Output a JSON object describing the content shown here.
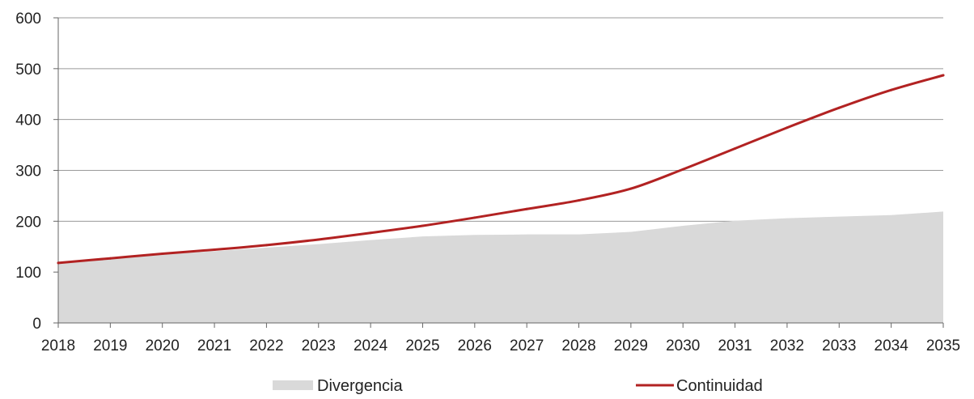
{
  "chart_data": {
    "type": "area",
    "title": "",
    "xlabel": "",
    "ylabel": "",
    "x": [
      "2018",
      "2019",
      "2020",
      "2021",
      "2022",
      "2023",
      "2024",
      "2025",
      "2026",
      "2027",
      "2028",
      "2029",
      "2030",
      "2031",
      "2032",
      "2033",
      "2034",
      "2035"
    ],
    "ylim": [
      0,
      600
    ],
    "yticks": [
      0,
      100,
      200,
      300,
      400,
      500,
      600
    ],
    "grid": "horizontal",
    "legend_position": "bottom",
    "series": [
      {
        "name": "Divergencia",
        "style": "area",
        "color": "#d9d9d9",
        "values": [
          118,
          128,
          135,
          141,
          148,
          155,
          163,
          170,
          173,
          174,
          174,
          179,
          191,
          201,
          206,
          209,
          212,
          219
        ]
      },
      {
        "name": "Continuidad",
        "style": "line",
        "color": "#b22222",
        "values": [
          118,
          127,
          136,
          144,
          153,
          164,
          177,
          191,
          207,
          224,
          241,
          264,
          302,
          343,
          384,
          423,
          458,
          487
        ]
      }
    ]
  }
}
